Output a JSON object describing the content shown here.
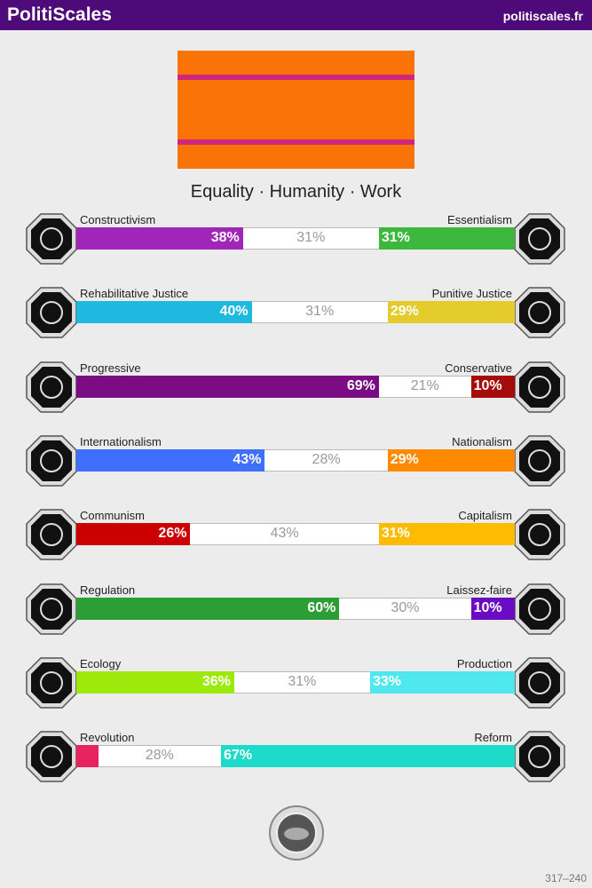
{
  "header": {
    "title": "PolitiScales",
    "site": "politiscales.fr"
  },
  "slogan": "Equality · Humanity · Work",
  "axes": [
    {
      "left_name": "Constructivism",
      "right_name": "Essentialism",
      "left": 38,
      "neutral": 31,
      "right": 31,
      "left_label": "38%",
      "neutral_label": "31%",
      "right_label": "31%",
      "left_color": "#a025b8",
      "right_color": "#3cb83c"
    },
    {
      "left_name": "Rehabilitative Justice",
      "right_name": "Punitive Justice",
      "left": 40,
      "neutral": 31,
      "right": 29,
      "left_label": "40%",
      "neutral_label": "31%",
      "right_label": "29%",
      "left_color": "#1fb9e0",
      "right_color": "#e3cc2b"
    },
    {
      "left_name": "Progressive",
      "right_name": "Conservative",
      "left": 69,
      "neutral": 21,
      "right": 10,
      "left_label": "69%",
      "neutral_label": "21%",
      "right_label": "10%",
      "left_color": "#7c0c84",
      "right_color": "#a50b0b"
    },
    {
      "left_name": "Internationalism",
      "right_name": "Nationalism",
      "left": 43,
      "neutral": 28,
      "right": 29,
      "left_label": "43%",
      "neutral_label": "28%",
      "right_label": "29%",
      "left_color": "#3f6fff",
      "right_color": "#ff8a00"
    },
    {
      "left_name": "Communism",
      "right_name": "Capitalism",
      "left": 26,
      "neutral": 43,
      "right": 31,
      "left_label": "26%",
      "neutral_label": "43%",
      "right_label": "31%",
      "left_color": "#cc0000",
      "right_color": "#ffbb00"
    },
    {
      "left_name": "Regulation",
      "right_name": "Laissez-faire",
      "left": 60,
      "neutral": 30,
      "right": 10,
      "left_label": "60%",
      "neutral_label": "30%",
      "right_label": "10%",
      "left_color": "#2b9e36",
      "right_color": "#6a0cc3"
    },
    {
      "left_name": "Ecology",
      "right_name": "Production",
      "left": 36,
      "neutral": 31,
      "right": 33,
      "left_label": "36%",
      "neutral_label": "31%",
      "right_label": "33%",
      "left_color": "#9ee90c",
      "right_color": "#4fe8ee"
    },
    {
      "left_name": "Revolution",
      "right_name": "Reform",
      "left": 5,
      "neutral": 28,
      "right": 67,
      "neutral_label": "28%",
      "right_label": "67%",
      "left_color": "#e8245e",
      "right_color": "#1ddbc9"
    }
  ],
  "footer": "317–240"
}
